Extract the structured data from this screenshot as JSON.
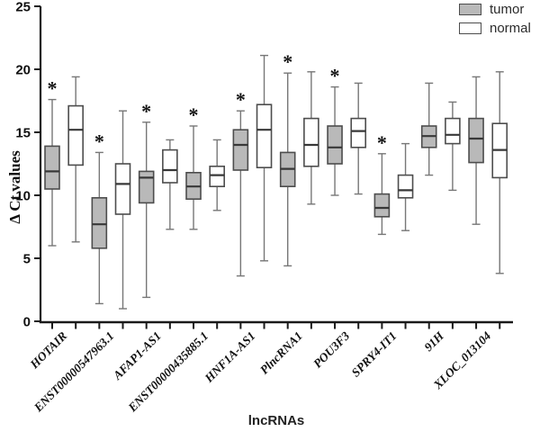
{
  "figure": {
    "background": "#ffffff",
    "axis_color": "#1a1a1a",
    "whisker_color": "#777777",
    "box_border_color": "#4d4d4d",
    "median_color": "#383838",
    "significance_marker": "*"
  },
  "chart_data": {
    "type": "boxplot",
    "title": "",
    "xlabel": "lncRNAs",
    "ylabel": "Δ Ct values",
    "ylim": [
      0,
      25
    ],
    "yticks": [
      0,
      5,
      10,
      15,
      20,
      25
    ],
    "grid": false,
    "legend_position": "top-right",
    "categories": [
      "HOTAIR",
      "ENST00000547963.1",
      "AFAP1-AS1",
      "ENST00000435885.1",
      "HNF1A-AS1",
      "PlncRNA1",
      "POU3F3",
      "SPRY4-IT1",
      "91H",
      "XLOC_013104"
    ],
    "series": [
      {
        "name": "tumor",
        "fill": "#b9b9b9",
        "significant": [
          true,
          true,
          true,
          true,
          true,
          true,
          true,
          true,
          false,
          false
        ],
        "boxes": [
          {
            "min": 6.0,
            "q1": 10.5,
            "median": 11.9,
            "q3": 13.9,
            "max": 17.6
          },
          {
            "min": 1.4,
            "q1": 5.8,
            "median": 7.7,
            "q3": 9.8,
            "max": 13.4
          },
          {
            "min": 1.9,
            "q1": 9.4,
            "median": 11.4,
            "q3": 11.9,
            "max": 15.8
          },
          {
            "min": 7.3,
            "q1": 9.7,
            "median": 10.7,
            "q3": 11.8,
            "max": 15.5
          },
          {
            "min": 3.6,
            "q1": 12.0,
            "median": 14.0,
            "q3": 15.2,
            "max": 16.7
          },
          {
            "min": 4.4,
            "q1": 10.7,
            "median": 12.1,
            "q3": 13.4,
            "max": 19.7
          },
          {
            "min": 10.0,
            "q1": 12.5,
            "median": 13.8,
            "q3": 15.5,
            "max": 18.6
          },
          {
            "min": 6.9,
            "q1": 8.3,
            "median": 9.0,
            "q3": 10.1,
            "max": 13.3
          },
          {
            "min": 11.6,
            "q1": 13.8,
            "median": 14.7,
            "q3": 15.5,
            "max": 18.9
          },
          {
            "min": 7.7,
            "q1": 12.6,
            "median": 14.5,
            "q3": 16.1,
            "max": 19.4
          }
        ]
      },
      {
        "name": "normal",
        "fill": "#ffffff",
        "significant": [
          false,
          false,
          false,
          false,
          false,
          false,
          false,
          false,
          false,
          false
        ],
        "boxes": [
          {
            "min": 6.3,
            "q1": 12.4,
            "median": 15.2,
            "q3": 17.1,
            "max": 19.4
          },
          {
            "min": 1.0,
            "q1": 8.5,
            "median": 10.9,
            "q3": 12.5,
            "max": 16.7
          },
          {
            "min": 7.3,
            "q1": 11.0,
            "median": 12.0,
            "q3": 13.6,
            "max": 14.4
          },
          {
            "min": 8.8,
            "q1": 10.7,
            "median": 11.6,
            "q3": 12.3,
            "max": 14.4
          },
          {
            "min": 4.8,
            "q1": 12.2,
            "median": 15.2,
            "q3": 17.2,
            "max": 21.1
          },
          {
            "min": 9.3,
            "q1": 12.3,
            "median": 14.0,
            "q3": 16.1,
            "max": 19.8
          },
          {
            "min": 10.1,
            "q1": 13.8,
            "median": 15.1,
            "q3": 16.1,
            "max": 18.9
          },
          {
            "min": 7.2,
            "q1": 9.8,
            "median": 10.4,
            "q3": 11.6,
            "max": 14.1
          },
          {
            "min": 10.4,
            "q1": 14.1,
            "median": 14.8,
            "q3": 16.1,
            "max": 17.4
          },
          {
            "min": 3.8,
            "q1": 11.4,
            "median": 13.6,
            "q3": 15.7,
            "max": 19.8
          }
        ]
      }
    ]
  }
}
